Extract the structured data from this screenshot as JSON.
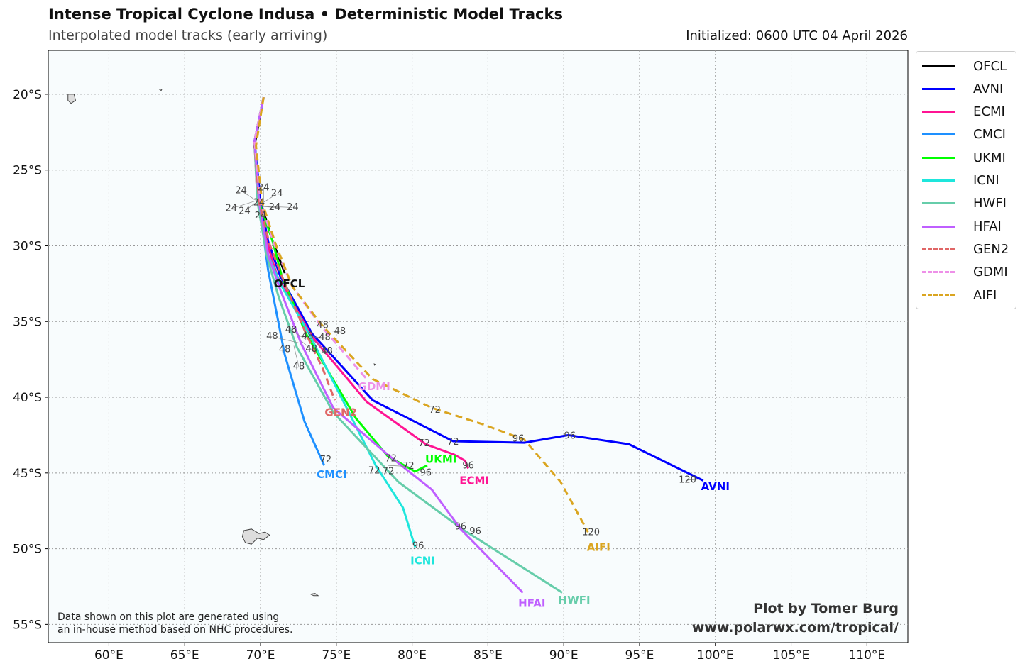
{
  "header": {
    "title": "Intense Tropical Cyclone Indusa • Deterministic Model Tracks",
    "subtitle": "Interpolated model tracks (early arriving)",
    "initialized": "Initialized: 0600 UTC 04 April 2026"
  },
  "credit": {
    "line1": "Plot by Tomer Burg",
    "line2": "www.polarwx.com/tropical/"
  },
  "disclaimer": {
    "line1": "Data shown on this plot are generated using",
    "line2": "an in-house method based on NHC procedures."
  },
  "chart_data": {
    "type": "map-tracks",
    "xlim": [
      56.0,
      112.7
    ],
    "ylim": [
      -56.2,
      -17.1
    ],
    "grid": true,
    "legend_position": "right-outside",
    "x_ticks": [
      {
        "value": 60,
        "label": "60°E"
      },
      {
        "value": 65,
        "label": "65°E"
      },
      {
        "value": 70,
        "label": "70°E"
      },
      {
        "value": 75,
        "label": "75°E"
      },
      {
        "value": 80,
        "label": "80°E"
      },
      {
        "value": 85,
        "label": "85°E"
      },
      {
        "value": 90,
        "label": "90°E"
      },
      {
        "value": 95,
        "label": "95°E"
      },
      {
        "value": 100,
        "label": "100°E"
      },
      {
        "value": 105,
        "label": "105°E"
      },
      {
        "value": 110,
        "label": "110°E"
      }
    ],
    "y_ticks": [
      {
        "value": -20,
        "label": "20°S"
      },
      {
        "value": -25,
        "label": "25°S"
      },
      {
        "value": -30,
        "label": "30°S"
      },
      {
        "value": -35,
        "label": "35°S"
      },
      {
        "value": -40,
        "label": "40°S"
      },
      {
        "value": -45,
        "label": "45°S"
      },
      {
        "value": -50,
        "label": "50°S"
      },
      {
        "value": -55,
        "label": "55°S"
      }
    ],
    "series": [
      {
        "name": "OFCL",
        "color": "#000000",
        "dashed": false,
        "track": [
          [
            70.2,
            -20.2
          ],
          [
            69.6,
            -23.4
          ],
          [
            70.0,
            -27.1
          ],
          [
            70.8,
            -29.7
          ],
          [
            71.6,
            -31.8
          ]
        ],
        "name_pos": [
          71.9,
          -32.5
        ],
        "hour_labels": [
          {
            "text": "24",
            "pos": [
              69.9,
              -27.1
            ]
          }
        ]
      },
      {
        "name": "AVNI",
        "color": "#0000ff",
        "dashed": false,
        "track": [
          [
            70.2,
            -20.2
          ],
          [
            69.6,
            -23.1
          ],
          [
            70.0,
            -27.1
          ],
          [
            70.5,
            -29.7
          ],
          [
            71.3,
            -32.0
          ],
          [
            73.4,
            -35.8
          ],
          [
            77.4,
            -40.2
          ],
          [
            82.7,
            -42.9
          ],
          [
            87.4,
            -43.0
          ],
          [
            90.3,
            -42.5
          ],
          [
            94.3,
            -43.1
          ],
          [
            99.2,
            -45.5
          ]
        ],
        "name_pos": [
          100.0,
          -45.9
        ],
        "hour_labels": [
          {
            "text": "24",
            "pos": [
              70.0,
              -27.4
            ]
          },
          {
            "text": "48",
            "pos": [
              73.1,
              -35.9
            ]
          },
          {
            "text": "72",
            "pos": [
              82.7,
              -42.9
            ]
          },
          {
            "text": "96",
            "pos": [
              90.4,
              -42.5
            ]
          },
          {
            "text": "120",
            "pos": [
              99.1,
              -45.4
            ]
          }
        ]
      },
      {
        "name": "ECMI",
        "color": "#ff1493",
        "dashed": false,
        "track": [
          [
            70.2,
            -20.2
          ],
          [
            69.6,
            -23.1
          ],
          [
            69.8,
            -27.1
          ],
          [
            70.4,
            -29.7
          ],
          [
            71.1,
            -32.0
          ],
          [
            73.4,
            -36.0
          ],
          [
            77.0,
            -40.3
          ],
          [
            80.9,
            -43.1
          ],
          [
            82.8,
            -43.8
          ],
          [
            83.5,
            -44.2
          ],
          [
            83.7,
            -44.7
          ]
        ],
        "name_pos": [
          84.1,
          -45.5
        ],
        "hour_labels": [
          {
            "text": "24",
            "pos": [
              69.6,
              -27.2
            ]
          },
          {
            "text": "48",
            "pos": [
              72.7,
              -36.3
            ]
          },
          {
            "text": "72",
            "pos": [
              80.8,
              -43.0
            ]
          },
          {
            "text": "96",
            "pos": [
              83.7,
              -44.8
            ]
          }
        ]
      },
      {
        "name": "CMCI",
        "color": "#1e90ff",
        "dashed": false,
        "track": [
          [
            70.2,
            -20.2
          ],
          [
            69.6,
            -23.1
          ],
          [
            69.9,
            -27.1
          ],
          [
            70.5,
            -31.6
          ],
          [
            71.6,
            -37.2
          ],
          [
            72.9,
            -41.6
          ],
          [
            74.2,
            -44.5
          ]
        ],
        "name_pos": [
          74.7,
          -45.1
        ],
        "hour_labels": [
          {
            "text": "24",
            "pos": [
              69.7,
              -27.0
            ]
          },
          {
            "text": "48",
            "pos": [
              71.6,
              -36.8
            ]
          },
          {
            "text": "72",
            "pos": [
              74.3,
              -44.4
            ]
          }
        ]
      },
      {
        "name": "UKMI",
        "color": "#00ff00",
        "dashed": false,
        "track": [
          [
            70.2,
            -20.2
          ],
          [
            69.6,
            -23.1
          ],
          [
            69.9,
            -27.1
          ],
          [
            70.8,
            -29.7
          ],
          [
            71.4,
            -32.0
          ],
          [
            73.0,
            -35.8
          ],
          [
            76.3,
            -41.4
          ],
          [
            78.4,
            -43.9
          ],
          [
            80.2,
            -44.9
          ],
          [
            81.0,
            -44.5
          ]
        ],
        "name_pos": [
          81.9,
          -44.1
        ],
        "hour_labels": [
          {
            "text": "24",
            "pos": [
              70.2,
              -27.1
            ]
          },
          {
            "text": "48",
            "pos": [
              73.3,
              -36.0
            ]
          },
          {
            "text": "72",
            "pos": [
              78.6,
              -44.0
            ]
          },
          {
            "text": "96",
            "pos": [
              80.9,
              -44.6
            ]
          }
        ]
      },
      {
        "name": "ICNI",
        "color": "#1ee6dc",
        "dashed": false,
        "track": [
          [
            70.2,
            -20.2
          ],
          [
            69.6,
            -23.1
          ],
          [
            69.9,
            -27.1
          ],
          [
            70.5,
            -30.6
          ],
          [
            71.3,
            -32.5
          ],
          [
            73.2,
            -35.8
          ],
          [
            77.6,
            -44.5
          ],
          [
            79.4,
            -47.3
          ],
          [
            80.2,
            -49.9
          ]
        ],
        "name_pos": [
          80.7,
          -50.8
        ],
        "hour_labels": [
          {
            "text": "24",
            "pos": [
              70.0,
              -27.3
            ]
          },
          {
            "text": "48",
            "pos": [
              73.0,
              -36.2
            ]
          },
          {
            "text": "72",
            "pos": [
              77.5,
              -44.8
            ]
          },
          {
            "text": "96",
            "pos": [
              80.4,
              -50.1
            ]
          }
        ]
      },
      {
        "name": "HWFI",
        "color": "#66cdaa",
        "dashed": false,
        "track": [
          [
            70.2,
            -20.2
          ],
          [
            69.6,
            -23.1
          ],
          [
            69.8,
            -27.1
          ],
          [
            70.4,
            -30.6
          ],
          [
            71.2,
            -33.4
          ],
          [
            72.4,
            -36.7
          ],
          [
            74.8,
            -41.0
          ],
          [
            79.1,
            -45.6
          ],
          [
            83.3,
            -48.7
          ],
          [
            89.9,
            -52.9
          ]
        ],
        "name_pos": [
          90.7,
          -53.4
        ],
        "hour_labels": [
          {
            "text": "24",
            "pos": [
              69.8,
              -27.0
            ]
          },
          {
            "text": "48",
            "pos": [
              72.2,
              -36.6
            ]
          },
          {
            "text": "72",
            "pos": [
              78.1,
              -44.6
            ]
          },
          {
            "text": "96",
            "pos": [
              83.2,
              -48.5
            ]
          }
        ]
      },
      {
        "name": "HFAI",
        "color": "#bf5fff",
        "dashed": false,
        "track": [
          [
            70.2,
            -20.2
          ],
          [
            69.6,
            -23.1
          ],
          [
            69.9,
            -27.1
          ],
          [
            70.5,
            -30.6
          ],
          [
            71.3,
            -32.9
          ],
          [
            72.7,
            -36.5
          ],
          [
            74.8,
            -40.7
          ],
          [
            78.4,
            -43.8
          ],
          [
            81.3,
            -46.1
          ],
          [
            83.2,
            -48.7
          ],
          [
            87.3,
            -52.9
          ]
        ],
        "name_pos": [
          87.9,
          -53.6
        ],
        "hour_labels": [
          {
            "text": "24",
            "pos": [
              70.1,
              -27.2
            ]
          },
          {
            "text": "48",
            "pos": [
              72.5,
              -36.4
            ]
          },
          {
            "text": "72",
            "pos": [
              78.4,
              -44.5
            ]
          },
          {
            "text": "96",
            "pos": [
              83.7,
              -48.8
            ]
          }
        ]
      },
      {
        "name": "GEN2",
        "color": "#e06666",
        "dashed": true,
        "track": [
          [
            70.2,
            -20.2
          ],
          [
            69.6,
            -23.1
          ],
          [
            69.9,
            -27.1
          ],
          [
            70.6,
            -29.9
          ],
          [
            71.6,
            -32.5
          ],
          [
            73.0,
            -35.8
          ],
          [
            74.1,
            -38.1
          ],
          [
            74.9,
            -40.2
          ]
        ],
        "name_pos": [
          75.3,
          -41.0
        ],
        "hour_labels": [
          {
            "text": "48",
            "pos": [
              73.4,
              -36.2
            ]
          }
        ]
      },
      {
        "name": "GDMI",
        "color": "#ee90e8",
        "dashed": true,
        "track": [
          [
            70.2,
            -20.2
          ],
          [
            69.6,
            -23.1
          ],
          [
            70.0,
            -27.1
          ],
          [
            70.9,
            -29.9
          ],
          [
            72.1,
            -32.7
          ],
          [
            74.0,
            -35.3
          ],
          [
            77.0,
            -38.8
          ]
        ],
        "name_pos": [
          77.5,
          -39.3
        ],
        "hour_labels": [
          {
            "text": "48",
            "pos": [
              74.3,
              -35.6
            ]
          }
        ]
      },
      {
        "name": "AIFI",
        "color": "#daa520",
        "dashed": true,
        "track": [
          [
            70.2,
            -20.2
          ],
          [
            69.7,
            -23.4
          ],
          [
            70.1,
            -27.1
          ],
          [
            71.0,
            -29.9
          ],
          [
            72.1,
            -32.7
          ],
          [
            74.1,
            -35.3
          ],
          [
            77.4,
            -38.8
          ],
          [
            81.3,
            -40.7
          ],
          [
            84.7,
            -41.8
          ],
          [
            87.4,
            -42.8
          ],
          [
            89.8,
            -45.6
          ],
          [
            91.6,
            -48.9
          ]
        ],
        "name_pos": [
          92.3,
          -49.9
        ],
        "hour_labels": [
          {
            "text": "24",
            "pos": [
              70.3,
              -27.4
            ]
          },
          {
            "text": "48",
            "pos": [
              74.1,
              -35.2
            ]
          },
          {
            "text": "72",
            "pos": [
              81.5,
              -40.8
            ]
          },
          {
            "text": "96",
            "pos": [
              87.0,
              -42.7
            ]
          },
          {
            "text": "120",
            "pos": [
              91.8,
              -49.2
            ]
          }
        ]
      }
    ]
  }
}
